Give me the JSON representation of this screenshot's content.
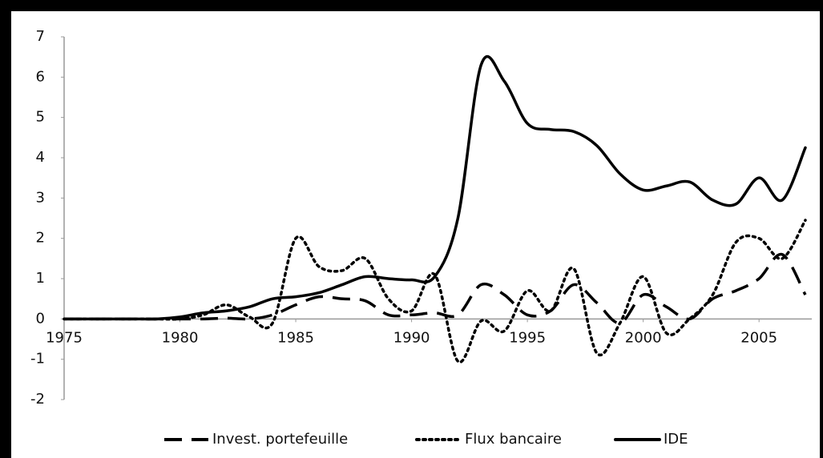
{
  "chart_data": {
    "type": "line",
    "x": [
      1975,
      1976,
      1977,
      1978,
      1979,
      1980,
      1981,
      1982,
      1983,
      1984,
      1985,
      1986,
      1987,
      1988,
      1989,
      1990,
      1991,
      1992,
      1993,
      1994,
      1995,
      1996,
      1997,
      1998,
      1999,
      2000,
      2001,
      2002,
      2003,
      2004,
      2005,
      2006,
      2007
    ],
    "series": [
      {
        "name": "Invest. portefeuille",
        "color": "#000000",
        "style": "dashed",
        "values": [
          0,
          0,
          0,
          0,
          0,
          0,
          0,
          0.02,
          0,
          0.1,
          0.35,
          0.55,
          0.5,
          0.45,
          0.1,
          0.1,
          0.15,
          0.1,
          0.85,
          0.6,
          0.1,
          0.2,
          0.85,
          0.4,
          -0.1,
          0.6,
          0.3,
          0,
          0.5,
          0.7,
          1.0,
          1.6,
          0.6
        ]
      },
      {
        "name": "Flux bancaire",
        "color": "#000000",
        "style": "dotted",
        "values": [
          0,
          0,
          0,
          0,
          0,
          0,
          0.1,
          0.35,
          0.05,
          -0.1,
          2.0,
          1.3,
          1.2,
          1.5,
          0.5,
          0.2,
          1.1,
          -1.05,
          -0.05,
          -0.3,
          0.7,
          0.2,
          1.25,
          -0.85,
          -0.1,
          1.05,
          -0.35,
          0,
          0.6,
          1.9,
          2.0,
          1.5,
          2.45
        ]
      },
      {
        "name": "IDE",
        "color": "#000000",
        "style": "solid",
        "values": [
          0,
          0,
          0,
          0,
          0,
          0.05,
          0.15,
          0.2,
          0.3,
          0.5,
          0.55,
          0.65,
          0.85,
          1.05,
          1.0,
          0.97,
          1.05,
          2.5,
          6.3,
          5.9,
          4.85,
          4.7,
          4.65,
          4.3,
          3.6,
          3.2,
          3.3,
          3.4,
          2.95,
          2.85,
          3.5,
          2.95,
          4.25
        ]
      }
    ],
    "xlim": [
      1975,
      2007
    ],
    "xticks": [
      1975,
      1980,
      1985,
      1990,
      1995,
      2000,
      2005
    ],
    "ylim": [
      -2,
      7
    ],
    "yticks": [
      -2,
      -1,
      0,
      1,
      2,
      3,
      4,
      5,
      6,
      7
    ],
    "grid": false,
    "legend": "bottom"
  }
}
